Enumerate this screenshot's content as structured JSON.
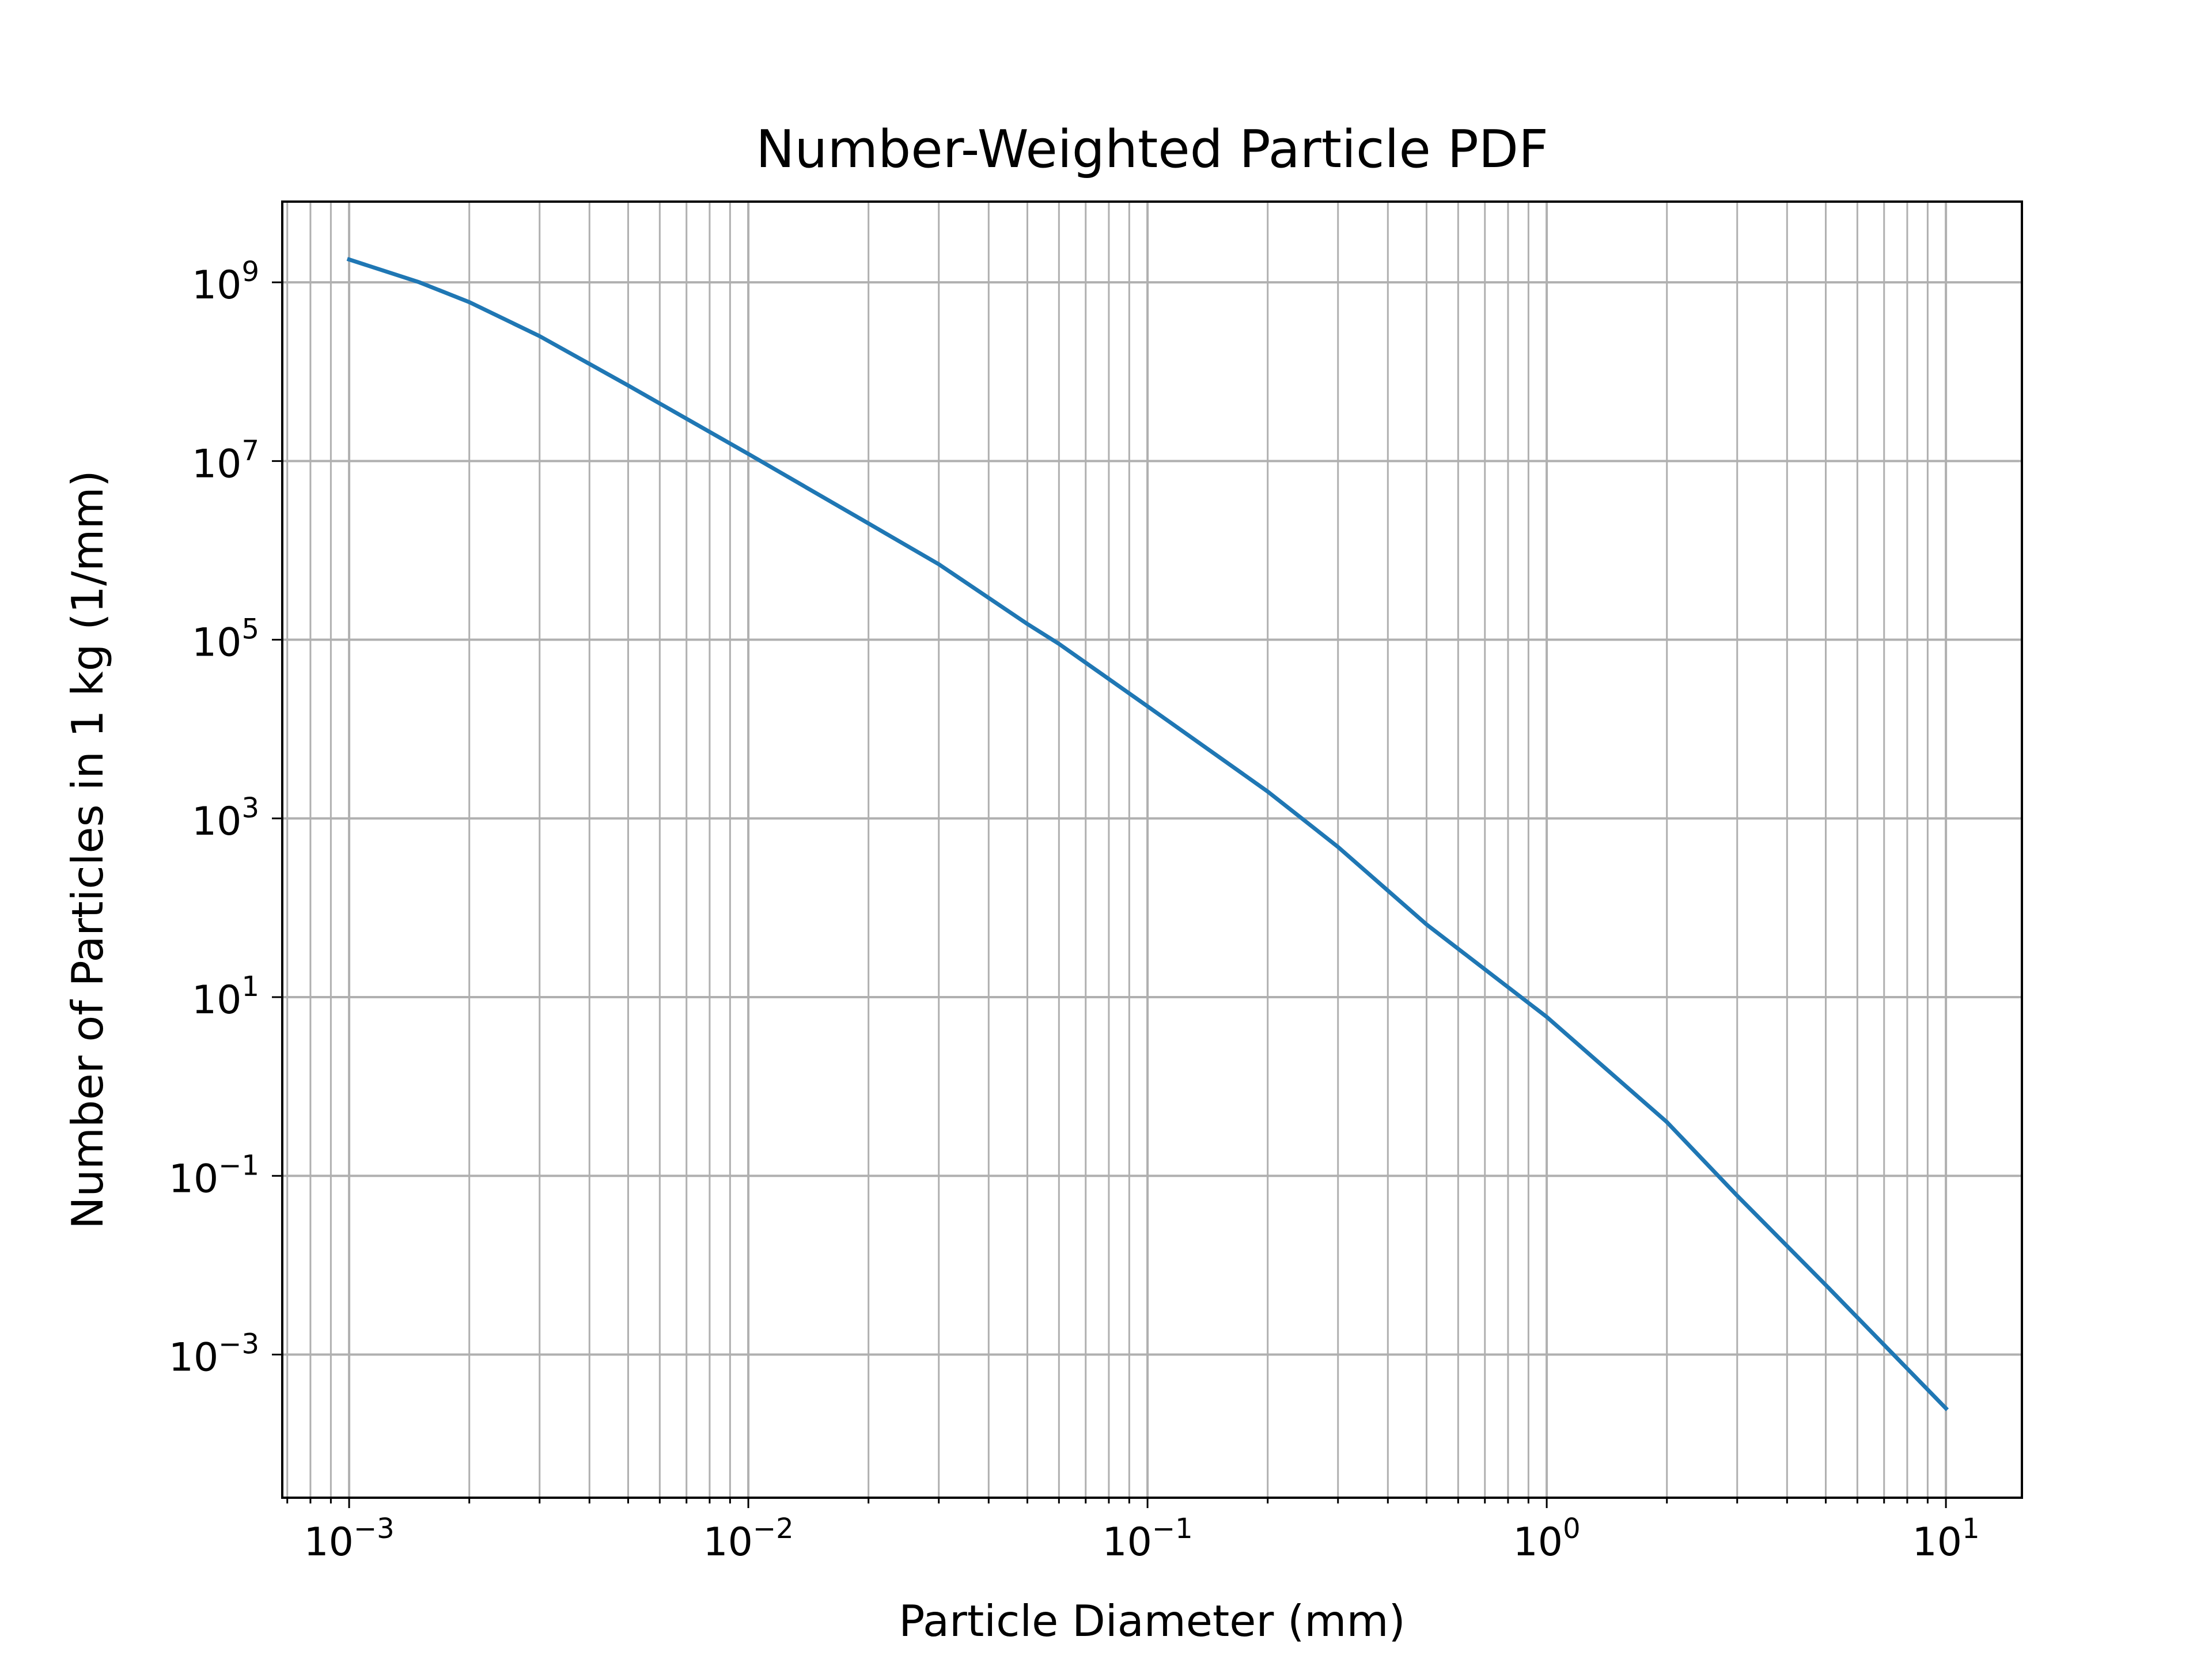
{
  "chart_data": {
    "type": "line",
    "title": "Number-Weighted Particle PDF",
    "xlabel": "Particle Diameter (mm)",
    "ylabel": "Number of Particles in 1 kg (1/mm)",
    "xscale": "log",
    "yscale": "log",
    "xlim": [
      0.00068,
      15.5
    ],
    "ylim": [
      2.5e-05,
      8000000000
    ],
    "grid": true,
    "grid_minor": true,
    "line_color": "#1f77b4",
    "x_ticks": [
      {
        "value": 0.001,
        "base": "10",
        "exp": "−3"
      },
      {
        "value": 0.01,
        "base": "10",
        "exp": "−2"
      },
      {
        "value": 0.1,
        "base": "10",
        "exp": "−1"
      },
      {
        "value": 1,
        "base": "10",
        "exp": "0"
      },
      {
        "value": 10,
        "base": "10",
        "exp": "1"
      }
    ],
    "y_ticks": [
      {
        "value": 1000000000.0,
        "base": "10",
        "exp": "9"
      },
      {
        "value": 10000000.0,
        "base": "10",
        "exp": "7"
      },
      {
        "value": 100000.0,
        "base": "10",
        "exp": "5"
      },
      {
        "value": 1000.0,
        "base": "10",
        "exp": "3"
      },
      {
        "value": 10,
        "base": "10",
        "exp": "1"
      },
      {
        "value": 0.1,
        "base": "10",
        "exp": "−1"
      },
      {
        "value": 0.001,
        "base": "10",
        "exp": "−3"
      }
    ],
    "series": [
      {
        "x": [
          0.001,
          0.0015,
          0.002,
          0.003,
          0.005,
          0.01,
          0.02,
          0.03,
          0.05,
          0.06,
          0.1,
          0.2,
          0.3,
          0.5,
          1,
          2,
          3,
          5,
          10
        ],
        "y": [
          1800000000,
          1000000000,
          600000000,
          250000000,
          70000000,
          12000000,
          2000000,
          700000,
          150000,
          90000,
          18000,
          2000,
          480,
          65,
          6,
          0.4,
          0.06,
          0.006,
          0.00025
        ]
      }
    ]
  }
}
